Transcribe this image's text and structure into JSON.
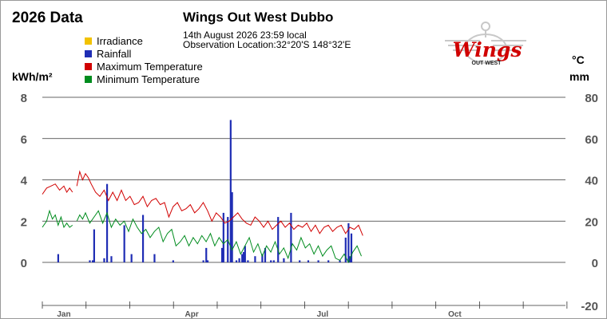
{
  "header": {
    "heading": "2026 Data",
    "title": "Wings Out West Dubbo",
    "timestamp": "14th August 2026  23:59 local",
    "location": "Observation Location:32°20'S 148°32'E"
  },
  "units": {
    "left": "kWh/m²",
    "right_top": "°C",
    "right_bottom": "mm"
  },
  "logo": {
    "text": "Wings",
    "subtext": "OUT WEST"
  },
  "colors": {
    "irradiance": "#f2c200",
    "rainfall": "#1f2db4",
    "max_temp": "#d10000",
    "min_temp": "#008c1e",
    "grid": "#333333",
    "axis_text": "#555555"
  },
  "legend": [
    {
      "label": "Irradiance",
      "color": "#f2c200"
    },
    {
      "label": "Rainfall",
      "color": "#1f2db4"
    },
    {
      "label": "Maximum Temperature",
      "color": "#d10000"
    },
    {
      "label": "Minimum Temperature",
      "color": "#008c1e"
    }
  ],
  "chart_data": {
    "type": "line",
    "x_unit": "day of year",
    "xlim": [
      1,
      365
    ],
    "x_ticks": [
      {
        "label": "Jan",
        "day": 16
      },
      {
        "label": "Apr",
        "day": 105
      },
      {
        "label": "Jul",
        "day": 196
      },
      {
        "label": "Oct",
        "day": 288
      }
    ],
    "left_axis": {
      "label": "kWh/m²",
      "ylim": [
        0,
        8
      ],
      "ticks": [
        "8",
        "6",
        "4",
        "2",
        "0"
      ]
    },
    "right_axis": {
      "label": "°C / mm",
      "ylim": [
        -20,
        80
      ],
      "ticks": [
        "80",
        "60",
        "40",
        "20",
        "0",
        "-20"
      ]
    },
    "grid": true,
    "series": [
      {
        "name": "Maximum Temperature",
        "axis": "right",
        "segments": [
          [
            [
              1,
              33
            ],
            [
              4,
              36
            ],
            [
              7,
              37
            ],
            [
              10,
              38
            ],
            [
              13,
              35
            ],
            [
              16,
              37
            ],
            [
              18,
              34
            ],
            [
              20,
              36
            ],
            [
              22,
              34
            ]
          ],
          [
            [
              25,
              37
            ],
            [
              27,
              44
            ],
            [
              29,
              40
            ],
            [
              31,
              43
            ],
            [
              33,
              41
            ],
            [
              35,
              38
            ],
            [
              38,
              34
            ],
            [
              41,
              32
            ],
            [
              44,
              35
            ],
            [
              47,
              30
            ],
            [
              50,
              34
            ],
            [
              53,
              30
            ],
            [
              56,
              35
            ],
            [
              59,
              30
            ],
            [
              62,
              32
            ],
            [
              65,
              28
            ],
            [
              68,
              29
            ],
            [
              71,
              32
            ],
            [
              74,
              27
            ],
            [
              77,
              30
            ],
            [
              80,
              31
            ],
            [
              83,
              28
            ],
            [
              86,
              29
            ],
            [
              89,
              22
            ],
            [
              92,
              27
            ],
            [
              95,
              29
            ],
            [
              98,
              25
            ],
            [
              101,
              26
            ],
            [
              104,
              28
            ],
            [
              107,
              24
            ],
            [
              110,
              26
            ],
            [
              113,
              29
            ],
            [
              116,
              25
            ],
            [
              119,
              20
            ],
            [
              122,
              24
            ],
            [
              125,
              22
            ],
            [
              128,
              19
            ],
            [
              131,
              20
            ],
            [
              134,
              22
            ],
            [
              137,
              24
            ],
            [
              140,
              21
            ],
            [
              143,
              19
            ],
            [
              146,
              18
            ],
            [
              149,
              22
            ],
            [
              152,
              20
            ],
            [
              155,
              17
            ],
            [
              158,
              20
            ],
            [
              161,
              16
            ],
            [
              164,
              18
            ],
            [
              167,
              20
            ],
            [
              170,
              17
            ],
            [
              173,
              19
            ],
            [
              176,
              16
            ],
            [
              179,
              18
            ],
            [
              182,
              17
            ],
            [
              185,
              19
            ],
            [
              188,
              15
            ],
            [
              191,
              18
            ],
            [
              194,
              14
            ],
            [
              197,
              17
            ],
            [
              200,
              18
            ],
            [
              203,
              15
            ],
            [
              206,
              17
            ],
            [
              209,
              18
            ],
            [
              212,
              14
            ],
            [
              215,
              17
            ],
            [
              218,
              16
            ],
            [
              221,
              18
            ],
            [
              224,
              13
            ]
          ]
        ]
      },
      {
        "name": "Minimum Temperature",
        "axis": "right",
        "segments": [
          [
            [
              1,
              17
            ],
            [
              4,
              20
            ],
            [
              6,
              25
            ],
            [
              8,
              21
            ],
            [
              10,
              23
            ],
            [
              12,
              18
            ],
            [
              14,
              22
            ],
            [
              16,
              17
            ],
            [
              18,
              19
            ],
            [
              20,
              17
            ],
            [
              22,
              18
            ]
          ],
          [
            [
              25,
              20
            ],
            [
              27,
              23
            ],
            [
              29,
              21
            ],
            [
              31,
              24
            ],
            [
              34,
              19
            ],
            [
              37,
              22
            ],
            [
              40,
              25
            ],
            [
              43,
              19
            ],
            [
              46,
              24
            ],
            [
              49,
              17
            ],
            [
              52,
              21
            ],
            [
              55,
              18
            ],
            [
              58,
              20
            ],
            [
              61,
              15
            ],
            [
              64,
              21
            ],
            [
              67,
              17
            ],
            [
              70,
              14
            ],
            [
              73,
              16
            ],
            [
              76,
              12
            ],
            [
              79,
              15
            ],
            [
              82,
              17
            ],
            [
              85,
              10
            ],
            [
              88,
              14
            ],
            [
              91,
              16
            ],
            [
              94,
              8
            ],
            [
              97,
              10
            ],
            [
              100,
              13
            ],
            [
              103,
              8
            ],
            [
              106,
              12
            ],
            [
              109,
              9
            ],
            [
              112,
              13
            ],
            [
              115,
              10
            ],
            [
              118,
              14
            ],
            [
              121,
              8
            ],
            [
              124,
              12
            ],
            [
              127,
              9
            ],
            [
              130,
              11
            ],
            [
              133,
              6
            ],
            [
              136,
              10
            ],
            [
              139,
              4
            ],
            [
              142,
              8
            ],
            [
              145,
              12
            ],
            [
              148,
              5
            ],
            [
              151,
              9
            ],
            [
              154,
              3
            ],
            [
              157,
              8
            ],
            [
              160,
              5
            ],
            [
              163,
              10
            ],
            [
              166,
              4
            ],
            [
              169,
              7
            ],
            [
              172,
              2
            ],
            [
              175,
              9
            ],
            [
              178,
              6
            ],
            [
              181,
              12
            ],
            [
              184,
              7
            ],
            [
              187,
              9
            ],
            [
              190,
              4
            ],
            [
              193,
              8
            ],
            [
              196,
              3
            ],
            [
              199,
              6
            ],
            [
              202,
              8
            ],
            [
              205,
              2
            ],
            [
              208,
              1
            ],
            [
              211,
              4
            ],
            [
              214,
              0
            ],
            [
              217,
              5
            ],
            [
              220,
              8
            ],
            [
              223,
              3
            ]
          ]
        ]
      },
      {
        "name": "Rainfall",
        "axis": "right",
        "type": "bar",
        "points": [
          [
            12,
            4
          ],
          [
            34,
            1
          ],
          [
            36,
            1
          ],
          [
            37,
            16
          ],
          [
            44,
            2
          ],
          [
            46,
            38
          ],
          [
            49,
            3
          ],
          [
            58,
            18
          ],
          [
            63,
            4
          ],
          [
            71,
            23
          ],
          [
            79,
            4
          ],
          [
            92,
            1
          ],
          [
            113,
            1
          ],
          [
            115,
            7
          ],
          [
            116,
            1
          ],
          [
            126,
            7
          ],
          [
            127,
            24
          ],
          [
            130,
            22
          ],
          [
            132,
            69
          ],
          [
            133,
            34
          ],
          [
            136,
            1
          ],
          [
            138,
            2
          ],
          [
            140,
            4
          ],
          [
            141,
            5
          ],
          [
            142,
            8
          ],
          [
            144,
            1
          ],
          [
            149,
            3
          ],
          [
            154,
            4
          ],
          [
            156,
            7
          ],
          [
            160,
            1
          ],
          [
            162,
            1
          ],
          [
            165,
            22
          ],
          [
            169,
            2
          ],
          [
            174,
            24
          ],
          [
            180,
            1
          ],
          [
            186,
            1
          ],
          [
            193,
            1
          ],
          [
            200,
            1
          ],
          [
            208,
            1
          ],
          [
            212,
            12
          ],
          [
            214,
            19
          ],
          [
            215,
            3
          ],
          [
            216,
            14
          ]
        ]
      }
    ]
  }
}
